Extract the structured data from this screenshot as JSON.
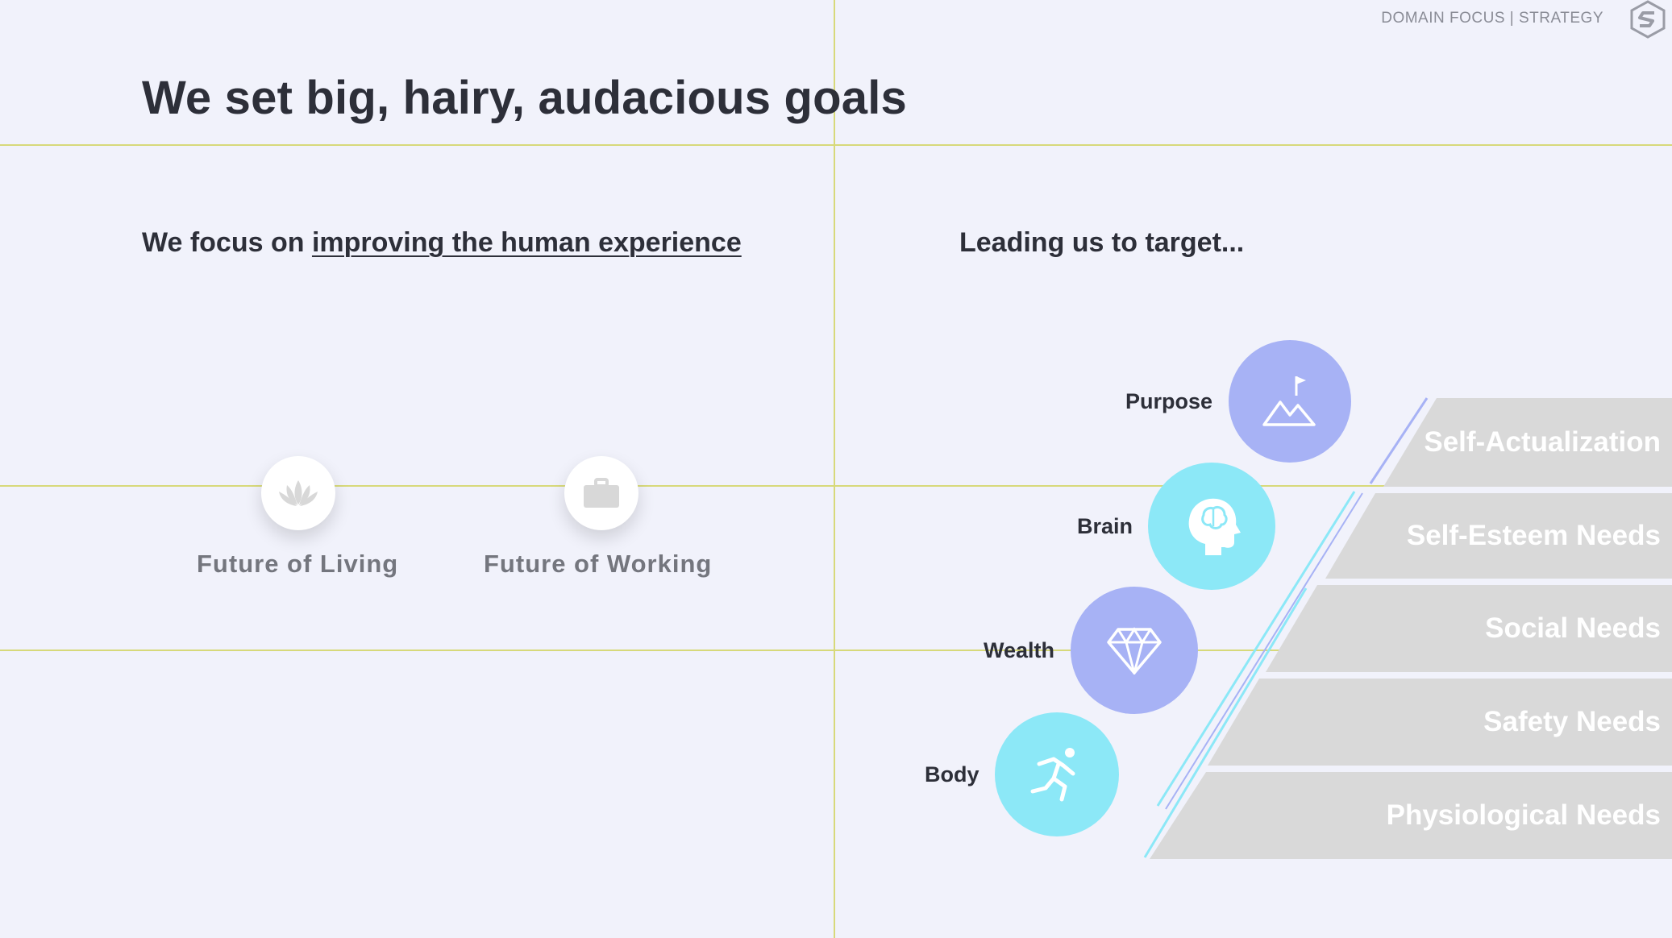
{
  "header": {
    "breadcrumb": "DOMAIN FOCUS | STRATEGY",
    "logo_icon": "s-logo-icon"
  },
  "title": "We set big, hairy, audacious goals",
  "left": {
    "intro_prefix": "We focus on ",
    "intro_link": "improving the human experience",
    "items": [
      {
        "label": "Future of Living",
        "icon": "lotus-icon"
      },
      {
        "label": "Future of Working",
        "icon": "briefcase-icon"
      }
    ]
  },
  "right": {
    "heading": "Leading us to target...",
    "needs": [
      {
        "label": "Purpose",
        "icon": "mountain-flag-icon",
        "color": "#a7b2f5"
      },
      {
        "label": "Brain",
        "icon": "head-brain-icon",
        "color": "#8ce8f7"
      },
      {
        "label": "Wealth",
        "icon": "diamond-icon",
        "color": "#a7b2f5"
      },
      {
        "label": "Body",
        "icon": "runner-icon",
        "color": "#8ce8f7"
      }
    ],
    "pyramid": [
      "Self-Actualization",
      "Self-Esteem Needs",
      "Social Needs",
      "Safety Needs",
      "Physiological Needs"
    ]
  },
  "colors": {
    "background": "#f1f2fb",
    "guide": "#d7d97a",
    "pyramid": "#d9d9d9",
    "periwinkle": "#a7b2f5",
    "cyan": "#8ce8f7"
  }
}
